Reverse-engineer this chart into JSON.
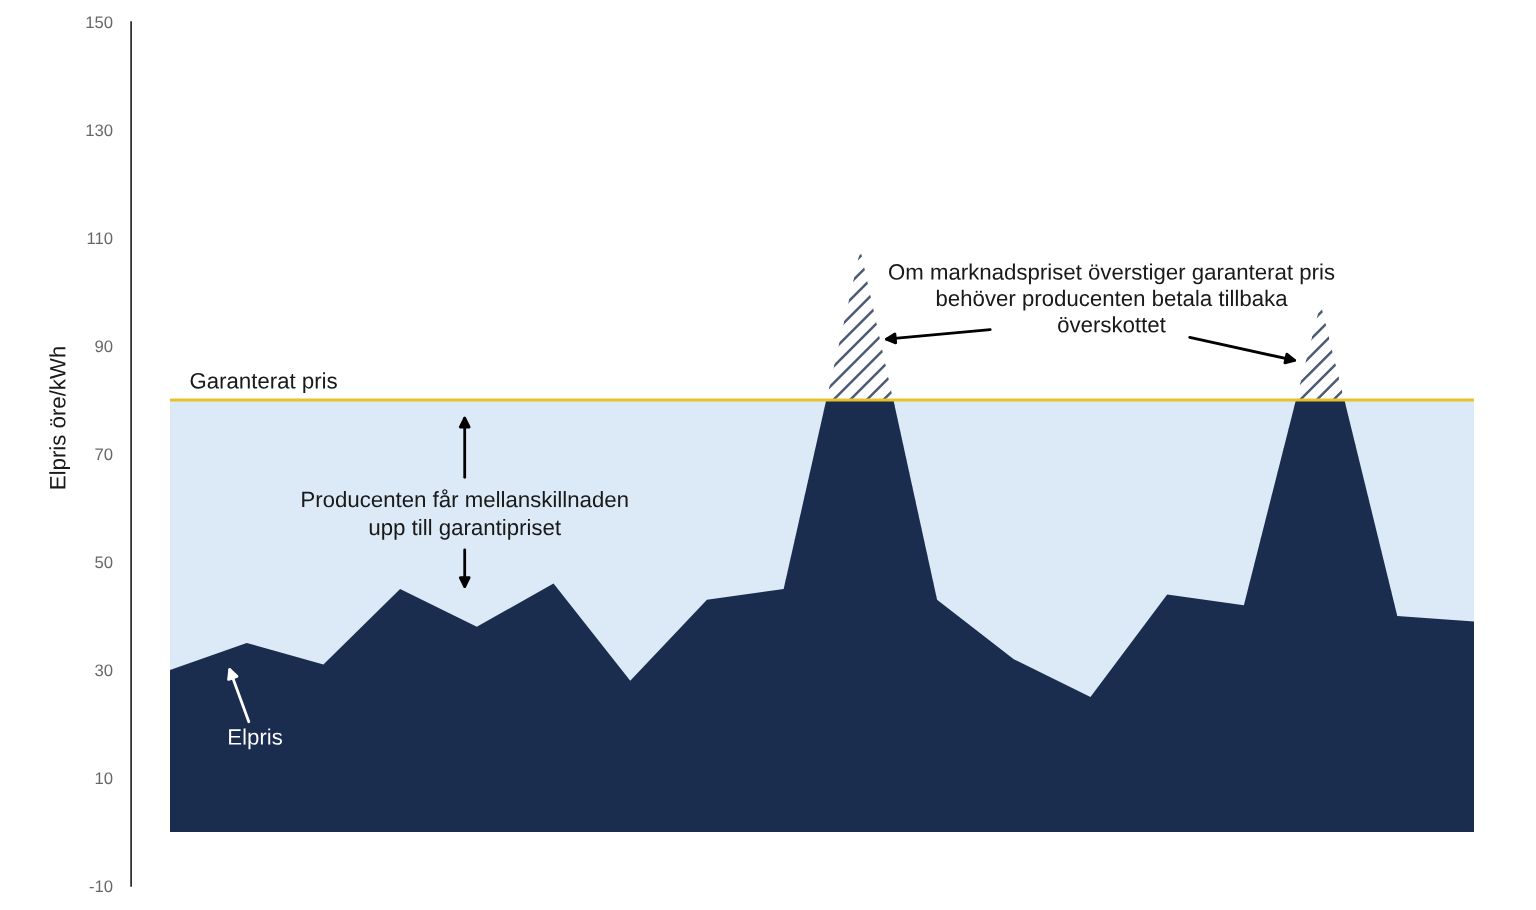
{
  "chart_data": {
    "type": "area",
    "ylabel": "Elpris öre/kWh",
    "categories": [
      null,
      null,
      null,
      null,
      null,
      null,
      null,
      null,
      null,
      null,
      null,
      null,
      null,
      null,
      null,
      null,
      null,
      null
    ],
    "series": [
      {
        "name": "Elpris",
        "color": "#1b2d4f",
        "values": [
          30,
          35,
          31,
          45,
          38,
          46,
          28,
          43,
          45,
          108,
          43,
          32,
          25,
          44,
          42,
          98,
          40,
          39
        ],
        "lower": [
          null,
          null,
          null,
          null,
          null,
          null,
          null,
          null,
          80,
          80,
          80,
          null,
          null,
          null,
          80,
          80,
          80,
          null
        ],
        "upper": [
          null,
          null,
          null,
          null,
          null,
          null,
          null,
          null,
          45,
          108,
          43,
          null,
          null,
          null,
          42,
          98,
          40,
          null
        ]
      }
    ],
    "ylim": [
      -10,
      150
    ],
    "yticks": [
      -10,
      10,
      30,
      50,
      70,
      90,
      110,
      130,
      150
    ],
    "grid": false,
    "tick_labels": "y",
    "ref_lines": [
      {
        "axis": "y",
        "value": 80,
        "label": "Garanterat pris",
        "color": "#e9c22b"
      }
    ],
    "bands": [
      {
        "axis": "y",
        "from": 0,
        "to": 80,
        "color": "#dce9f6"
      }
    ],
    "annotations": [
      "Producenten får mellanskillnaden\nupp till garantipriset",
      "Om marknadspriset överstiger garanterat pris\nbehöver producenten betala tillbaka\növerskottet"
    ]
  }
}
